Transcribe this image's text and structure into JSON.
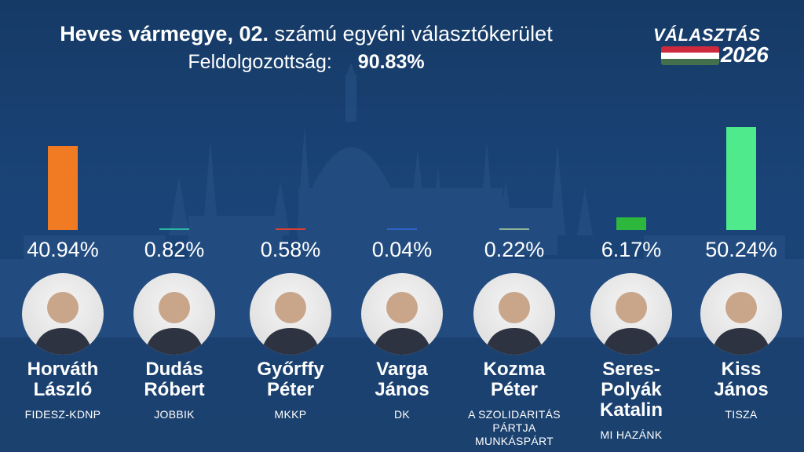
{
  "header": {
    "title_bold": "Heves vármegye, 02.",
    "title_rest": "számú egyéni választókerület",
    "progress_label": "Feldolgozottság:",
    "progress_value": "90.83%"
  },
  "logo": {
    "top": "VÁLASZTÁS",
    "year": "2026",
    "flag_colors": [
      "#cd2a3e",
      "#ffffff",
      "#436f4d"
    ]
  },
  "chart_data": {
    "type": "bar",
    "categories": [
      "Horváth László",
      "Dudás Róbert",
      "Győrffy Péter",
      "Varga János",
      "Kozma Péter",
      "Seres-Polyák Katalin",
      "Kiss János"
    ],
    "values": [
      40.94,
      0.82,
      0.58,
      0.04,
      0.22,
      6.17,
      50.24
    ],
    "ylim": [
      0,
      50.24
    ],
    "candidates": [
      {
        "name_lines": [
          "Horváth",
          "László"
        ],
        "party_lines": [
          "FIDESZ-KDNP"
        ],
        "percent_label": "40.94%",
        "percent": 40.94,
        "color": "#f07b22"
      },
      {
        "name_lines": [
          "Dudás",
          "Róbert"
        ],
        "party_lines": [
          "JOBBIK"
        ],
        "percent_label": "0.82%",
        "percent": 0.82,
        "color": "#2bb3a3"
      },
      {
        "name_lines": [
          "Győrffy",
          "Péter"
        ],
        "party_lines": [
          "MKKP"
        ],
        "percent_label": "0.58%",
        "percent": 0.58,
        "color": "#d9402f"
      },
      {
        "name_lines": [
          "Varga",
          "János"
        ],
        "party_lines": [
          "DK"
        ],
        "percent_label": "0.04%",
        "percent": 0.04,
        "color": "#2e63c8"
      },
      {
        "name_lines": [
          "Kozma",
          "Péter"
        ],
        "party_lines": [
          "A SZOLIDARITÁS",
          "PÁRTJA",
          "MUNKÁSPÁRT"
        ],
        "percent_label": "0.22%",
        "percent": 0.22,
        "color": "#8fb39a"
      },
      {
        "name_lines": [
          "Seres-",
          "Polyák",
          "Katalin"
        ],
        "party_lines": [
          "MI HAZÁNK"
        ],
        "percent_label": "6.17%",
        "percent": 6.17,
        "color": "#2db83d"
      },
      {
        "name_lines": [
          "Kiss",
          "János"
        ],
        "party_lines": [
          "TISZA"
        ],
        "percent_label": "50.24%",
        "percent": 50.24,
        "color": "#4eea8c"
      }
    ]
  }
}
